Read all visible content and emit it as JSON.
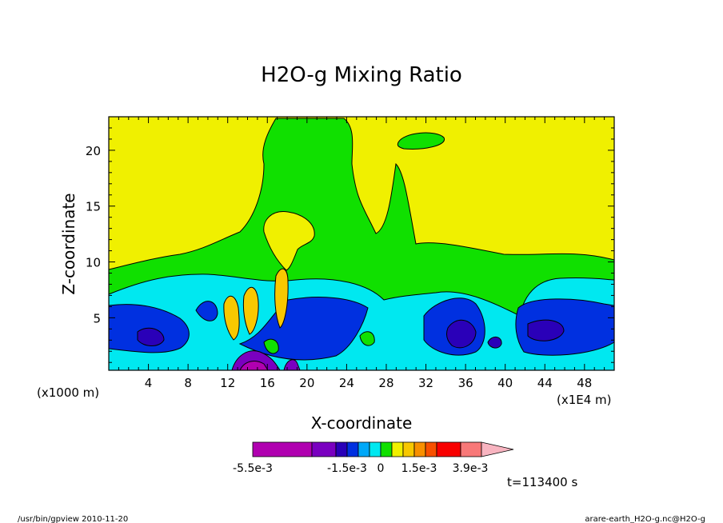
{
  "chart_data": {
    "type": "heatmap",
    "title": "H2O-g Mixing Ratio",
    "xlabel": "X-coordinate",
    "ylabel": "Z-coordinate",
    "x_scale_label": "(x1E4 m)",
    "y_scale_label": "(x1000 m)",
    "xlim": [
      0,
      51
    ],
    "ylim": [
      0.3,
      23
    ],
    "x_ticks": [
      "4",
      "8",
      "12",
      "16",
      "20",
      "24",
      "28",
      "32",
      "36",
      "40",
      "44",
      "48"
    ],
    "x_tick_values": [
      4,
      8,
      12,
      16,
      20,
      24,
      28,
      32,
      36,
      40,
      44,
      48
    ],
    "y_ticks": [
      "5",
      "10",
      "15",
      "20"
    ],
    "y_tick_values": [
      5,
      10,
      15,
      20
    ],
    "colorbar": {
      "colors": [
        "#b000b0",
        "#7a00c0",
        "#2a00b8",
        "#0030e0",
        "#00a8f8",
        "#00e8f0",
        "#10e000",
        "#f0f000",
        "#f8c800",
        "#f89000",
        "#f85000",
        "#f80000",
        "#f87878",
        "#f8b4c0"
      ],
      "labels": [
        "-5.5e-3",
        "-1.5e-3",
        "0",
        "1.5e-3",
        "3.9e-3"
      ]
    },
    "time_label": "t=113400 s",
    "footer_left": "/usr/bin/gpview  2010-11-20",
    "footer_right": "arare-earth_H2O-g.nc@H2O-g"
  }
}
